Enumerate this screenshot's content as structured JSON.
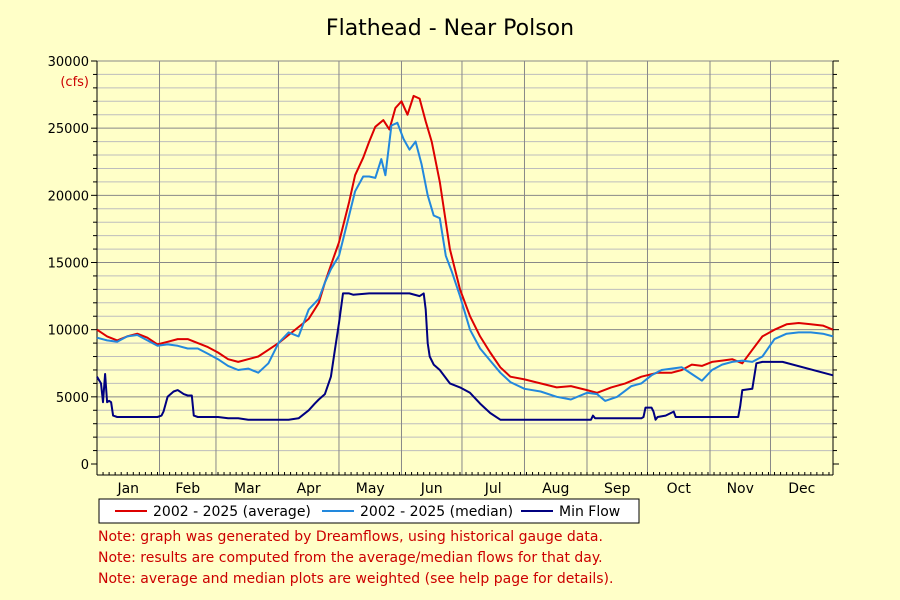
{
  "chart_data": {
    "type": "line",
    "title": "Flathead - Near Polson",
    "ylabel": "(cfs)",
    "xlabel": "",
    "ylim": [
      0,
      30000
    ],
    "yticks": [
      0,
      5000,
      10000,
      15000,
      20000,
      25000,
      30000
    ],
    "ytick_labels": [
      "0",
      "5000",
      "10000",
      "15000",
      "20000",
      "25000",
      "30000"
    ],
    "xlim": [
      0,
      365
    ],
    "months": [
      "Jan",
      "Feb",
      "Mar",
      "Apr",
      "May",
      "Jun",
      "Jul",
      "Aug",
      "Sep",
      "Oct",
      "Nov",
      "Dec"
    ],
    "month_starts": [
      0,
      31,
      59,
      90,
      120,
      151,
      181,
      212,
      243,
      273,
      304,
      334
    ],
    "grid": true,
    "legend_position": "bottom",
    "series": [
      {
        "name": "2002 - 2025 (average)",
        "color": "#dd0000",
        "x": [
          0,
          5,
          10,
          15,
          20,
          25,
          30,
          35,
          40,
          45,
          50,
          55,
          60,
          65,
          70,
          75,
          80,
          85,
          90,
          95,
          100,
          105,
          110,
          113,
          116,
          120,
          125,
          128,
          132,
          135,
          138,
          142,
          145,
          148,
          151,
          154,
          157,
          160,
          163,
          166,
          170,
          175,
          180,
          185,
          190,
          195,
          200,
          205,
          212,
          220,
          228,
          235,
          243,
          248,
          255,
          262,
          270,
          278,
          285,
          290,
          295,
          300,
          305,
          310,
          315,
          320,
          325,
          330,
          336,
          342,
          348,
          354,
          360,
          365
        ],
        "y": [
          10000,
          9500,
          9200,
          9500,
          9700,
          9400,
          8900,
          9100,
          9300,
          9300,
          9000,
          8700,
          8300,
          7800,
          7600,
          7800,
          8000,
          8500,
          9000,
          9600,
          10200,
          10800,
          12000,
          13500,
          14800,
          16500,
          19500,
          21500,
          22800,
          24000,
          25100,
          25600,
          24900,
          26500,
          27000,
          26000,
          27400,
          27200,
          25500,
          24000,
          21000,
          16000,
          13000,
          11000,
          9500,
          8300,
          7200,
          6500,
          6300,
          6000,
          5700,
          5800,
          5500,
          5300,
          5700,
          6000,
          6500,
          6800,
          6800,
          7000,
          7400,
          7300,
          7600,
          7700,
          7800,
          7500,
          8500,
          9500,
          10000,
          10400,
          10500,
          10400,
          10300,
          10000
        ]
      },
      {
        "name": "2002 - 2025 (median)",
        "color": "#2288dd",
        "x": [
          0,
          5,
          10,
          15,
          20,
          25,
          30,
          35,
          40,
          45,
          50,
          55,
          60,
          65,
          70,
          75,
          80,
          85,
          90,
          95,
          100,
          105,
          110,
          113,
          116,
          120,
          125,
          128,
          132,
          135,
          138,
          141,
          143,
          146,
          149,
          152,
          155,
          158,
          161,
          164,
          167,
          170,
          173,
          176,
          180,
          185,
          190,
          195,
          200,
          205,
          212,
          220,
          228,
          235,
          243,
          248,
          252,
          258,
          265,
          270,
          275,
          280,
          285,
          290,
          295,
          300,
          305,
          310,
          315,
          320,
          325,
          330,
          336,
          342,
          348,
          354,
          360,
          365
        ],
        "y": [
          9400,
          9200,
          9100,
          9500,
          9600,
          9200,
          8800,
          8900,
          8800,
          8600,
          8600,
          8200,
          7800,
          7300,
          7000,
          7100,
          6800,
          7500,
          9000,
          9800,
          9500,
          11500,
          12300,
          13500,
          14500,
          15500,
          18500,
          20300,
          21400,
          21400,
          21300,
          22700,
          21500,
          25200,
          25400,
          24200,
          23400,
          24000,
          22300,
          20000,
          18500,
          18300,
          15500,
          14300,
          12500,
          10000,
          8600,
          7700,
          6800,
          6100,
          5600,
          5400,
          5000,
          4800,
          5300,
          5200,
          4700,
          5000,
          5800,
          6000,
          6600,
          7000,
          7100,
          7200,
          6700,
          6200,
          7000,
          7400,
          7600,
          7700,
          7600,
          8000,
          9300,
          9700,
          9800,
          9800,
          9700,
          9500
        ]
      },
      {
        "name": "Min Flow",
        "color": "#000080",
        "x": [
          0,
          2,
          3,
          4,
          5,
          6,
          7,
          8,
          10,
          15,
          25,
          30,
          32,
          33,
          35,
          38,
          40,
          43,
          45,
          47,
          48,
          50,
          55,
          60,
          65,
          70,
          75,
          80,
          85,
          90,
          95,
          100,
          105,
          108,
          110,
          113,
          116,
          118,
          120,
          122,
          125,
          127,
          135,
          145,
          155,
          160,
          162,
          163,
          164,
          165,
          167,
          170,
          175,
          180,
          185,
          190,
          195,
          200,
          205,
          212,
          220,
          230,
          240,
          245,
          246,
          247,
          250,
          260,
          268,
          270,
          271,
          272,
          275,
          276,
          277,
          278,
          282,
          286,
          287,
          300,
          318,
          319,
          320,
          325,
          327,
          330,
          335,
          340,
          365
        ],
        "y": [
          6500,
          6000,
          4600,
          6700,
          4600,
          4700,
          4600,
          3600,
          3500,
          3500,
          3500,
          3500,
          3600,
          3900,
          5000,
          5400,
          5500,
          5200,
          5100,
          5100,
          3600,
          3500,
          3500,
          3500,
          3400,
          3400,
          3300,
          3300,
          3300,
          3300,
          3300,
          3400,
          4000,
          4500,
          4800,
          5200,
          6500,
          8500,
          10500,
          12700,
          12700,
          12600,
          12700,
          12700,
          12700,
          12500,
          12700,
          11500,
          9000,
          8000,
          7400,
          7000,
          6000,
          5700,
          5300,
          4500,
          3800,
          3300,
          3300,
          3300,
          3300,
          3300,
          3300,
          3300,
          3600,
          3400,
          3400,
          3400,
          3400,
          3400,
          3500,
          4200,
          4200,
          3900,
          3300,
          3500,
          3600,
          3900,
          3500,
          3500,
          3500,
          4300,
          5500,
          5600,
          7500,
          7600,
          7600,
          7600,
          6600
        ]
      }
    ]
  },
  "notes": [
    "Note: graph was generated by Dreamflows, using historical gauge data.",
    "Note: results are computed from the average/median flows for that day.",
    "Note: average and median plots are weighted (see help page for details)."
  ],
  "colors": {
    "background": "#ffffc8",
    "grid_major": "#888888",
    "grid_minor": "#bdbdbd",
    "note": "#cc0000"
  }
}
